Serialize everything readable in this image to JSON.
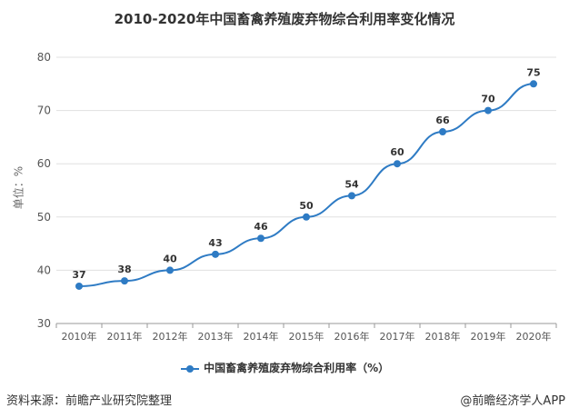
{
  "chart_data": {
    "type": "line",
    "title": "2010-2020年中国畜禽养殖废弃物综合利用率变化情况",
    "ylabel": "单位：%",
    "categories": [
      "2010年",
      "2011年",
      "2012年",
      "2013年",
      "2014年",
      "2015年",
      "2016年",
      "2017年",
      "2018年",
      "2019年",
      "2020年"
    ],
    "series": [
      {
        "name": "中国畜禽养殖废弃物综合利用率（%）",
        "values": [
          37,
          38,
          40,
          43,
          46,
          50,
          54,
          60,
          66,
          70,
          75
        ]
      }
    ],
    "ylim": [
      30,
      80
    ],
    "yticks": [
      30,
      40,
      50,
      60,
      70,
      80
    ],
    "grid": true,
    "legend": "bottom",
    "color": "#2e7bc4"
  },
  "footer": {
    "source": "资料来源：前瞻产业研究院整理",
    "credit": "@前瞻经济学人APP"
  }
}
